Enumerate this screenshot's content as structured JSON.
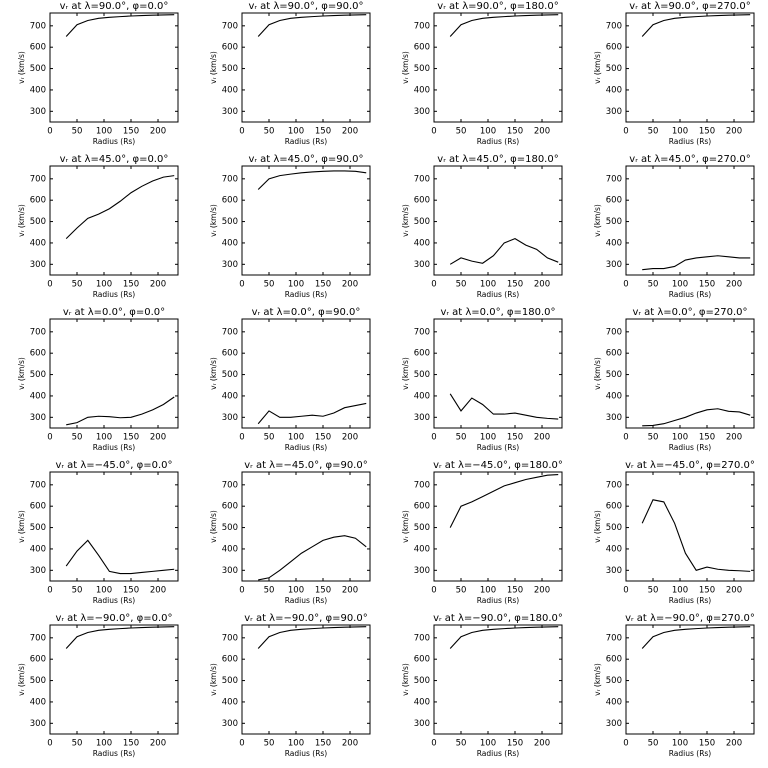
{
  "chart_data": [
    {
      "type": "line",
      "title": "vᵣ at λ=90.0°, φ=0.0°",
      "xlabel": "Radius (Rs)",
      "ylabel": "vᵣ (km/s)",
      "x": [
        30,
        50,
        70,
        90,
        110,
        130,
        150,
        170,
        190,
        210,
        230
      ],
      "series": [
        {
          "color": "#000000",
          "values": [
            650,
            705,
            725,
            735,
            740,
            743,
            746,
            748,
            750,
            751,
            752
          ]
        }
      ],
      "xlim": [
        0,
        237
      ],
      "xticks": [
        0,
        50,
        100,
        150,
        200
      ],
      "ylim": [
        250,
        760
      ],
      "yticks": [
        300,
        400,
        500,
        600,
        700
      ]
    },
    {
      "type": "line",
      "title": "vᵣ at λ=90.0°, φ=90.0°",
      "xlabel": "Radius (Rs)",
      "ylabel": "vᵣ (km/s)",
      "x": [
        30,
        50,
        70,
        90,
        110,
        130,
        150,
        170,
        190,
        210,
        230
      ],
      "series": [
        {
          "color": "#000000",
          "values": [
            650,
            705,
            725,
            735,
            740,
            743,
            746,
            748,
            750,
            751,
            752
          ]
        }
      ],
      "xlim": [
        0,
        237
      ],
      "xticks": [
        0,
        50,
        100,
        150,
        200
      ],
      "ylim": [
        250,
        760
      ],
      "yticks": [
        300,
        400,
        500,
        600,
        700
      ]
    },
    {
      "type": "line",
      "title": "vᵣ at λ=90.0°, φ=180.0°",
      "xlabel": "Radius (Rs)",
      "ylabel": "vᵣ (km/s)",
      "x": [
        30,
        50,
        70,
        90,
        110,
        130,
        150,
        170,
        190,
        210,
        230
      ],
      "series": [
        {
          "color": "#000000",
          "values": [
            650,
            705,
            725,
            735,
            740,
            743,
            746,
            748,
            750,
            751,
            752
          ]
        }
      ],
      "xlim": [
        0,
        237
      ],
      "xticks": [
        0,
        50,
        100,
        150,
        200
      ],
      "ylim": [
        250,
        760
      ],
      "yticks": [
        300,
        400,
        500,
        600,
        700
      ]
    },
    {
      "type": "line",
      "title": "vᵣ at λ=90.0°, φ=270.0°",
      "xlabel": "Radius (Rs)",
      "ylabel": "vᵣ (km/s)",
      "x": [
        30,
        50,
        70,
        90,
        110,
        130,
        150,
        170,
        190,
        210,
        230
      ],
      "series": [
        {
          "color": "#000000",
          "values": [
            650,
            705,
            725,
            735,
            740,
            743,
            746,
            748,
            750,
            751,
            752
          ]
        }
      ],
      "xlim": [
        0,
        237
      ],
      "xticks": [
        0,
        50,
        100,
        150,
        200
      ],
      "ylim": [
        250,
        760
      ],
      "yticks": [
        300,
        400,
        500,
        600,
        700
      ]
    },
    {
      "type": "line",
      "title": "vᵣ at λ=45.0°, φ=0.0°",
      "xlabel": "Radius (Rs)",
      "ylabel": "vᵣ (km/s)",
      "x": [
        30,
        50,
        70,
        90,
        110,
        130,
        150,
        170,
        190,
        210,
        230
      ],
      "series": [
        {
          "color": "#000000",
          "values": [
            420,
            470,
            515,
            535,
            560,
            595,
            635,
            665,
            690,
            708,
            715
          ]
        }
      ],
      "xlim": [
        0,
        237
      ],
      "xticks": [
        0,
        50,
        100,
        150,
        200
      ],
      "ylim": [
        250,
        760
      ],
      "yticks": [
        300,
        400,
        500,
        600,
        700
      ]
    },
    {
      "type": "line",
      "title": "vᵣ at λ=45.0°, φ=90.0°",
      "xlabel": "Radius (Rs)",
      "ylabel": "vᵣ (km/s)",
      "x": [
        30,
        50,
        70,
        90,
        110,
        130,
        150,
        170,
        190,
        210,
        230
      ],
      "series": [
        {
          "color": "#000000",
          "values": [
            650,
            700,
            715,
            722,
            728,
            732,
            735,
            737,
            737,
            735,
            728
          ]
        }
      ],
      "xlim": [
        0,
        237
      ],
      "xticks": [
        0,
        50,
        100,
        150,
        200
      ],
      "ylim": [
        250,
        760
      ],
      "yticks": [
        300,
        400,
        500,
        600,
        700
      ]
    },
    {
      "type": "line",
      "title": "vᵣ at λ=45.0°, φ=180.0°",
      "xlabel": "Radius (Rs)",
      "ylabel": "vᵣ (km/s)",
      "x": [
        30,
        50,
        70,
        90,
        110,
        130,
        150,
        170,
        190,
        210,
        230
      ],
      "series": [
        {
          "color": "#000000",
          "values": [
            300,
            330,
            315,
            305,
            340,
            400,
            420,
            390,
            370,
            330,
            310
          ]
        }
      ],
      "xlim": [
        0,
        237
      ],
      "xticks": [
        0,
        50,
        100,
        150,
        200
      ],
      "ylim": [
        250,
        760
      ],
      "yticks": [
        300,
        400,
        500,
        600,
        700
      ]
    },
    {
      "type": "line",
      "title": "vᵣ at λ=45.0°, φ=270.0°",
      "xlabel": "Radius (Rs)",
      "ylabel": "vᵣ (km/s)",
      "x": [
        30,
        50,
        70,
        90,
        110,
        130,
        150,
        170,
        190,
        210,
        230
      ],
      "series": [
        {
          "color": "#000000",
          "values": [
            275,
            280,
            280,
            290,
            320,
            330,
            335,
            340,
            335,
            330,
            330
          ]
        }
      ],
      "xlim": [
        0,
        237
      ],
      "xticks": [
        0,
        50,
        100,
        150,
        200
      ],
      "ylim": [
        250,
        760
      ],
      "yticks": [
        300,
        400,
        500,
        600,
        700
      ]
    },
    {
      "type": "line",
      "title": "vᵣ at λ=0.0°, φ=0.0°",
      "xlabel": "Radius (Rs)",
      "ylabel": "vᵣ (km/s)",
      "x": [
        30,
        50,
        70,
        90,
        110,
        130,
        150,
        170,
        190,
        210,
        230
      ],
      "series": [
        {
          "color": "#000000",
          "values": [
            265,
            275,
            300,
            305,
            303,
            298,
            300,
            315,
            335,
            360,
            395
          ]
        }
      ],
      "xlim": [
        0,
        237
      ],
      "xticks": [
        0,
        50,
        100,
        150,
        200
      ],
      "ylim": [
        250,
        760
      ],
      "yticks": [
        300,
        400,
        500,
        600,
        700
      ]
    },
    {
      "type": "line",
      "title": "vᵣ at λ=0.0°, φ=90.0°",
      "xlabel": "Radius (Rs)",
      "ylabel": "vᵣ (km/s)",
      "x": [
        30,
        50,
        70,
        90,
        110,
        130,
        150,
        170,
        190,
        210,
        230
      ],
      "series": [
        {
          "color": "#000000",
          "values": [
            270,
            330,
            300,
            300,
            305,
            310,
            305,
            320,
            345,
            355,
            365
          ]
        }
      ],
      "xlim": [
        0,
        237
      ],
      "xticks": [
        0,
        50,
        100,
        150,
        200
      ],
      "ylim": [
        250,
        760
      ],
      "yticks": [
        300,
        400,
        500,
        600,
        700
      ]
    },
    {
      "type": "line",
      "title": "vᵣ at λ=0.0°, φ=180.0°",
      "xlabel": "Radius (Rs)",
      "ylabel": "vᵣ (km/s)",
      "x": [
        30,
        50,
        70,
        90,
        110,
        130,
        150,
        170,
        190,
        210,
        230
      ],
      "series": [
        {
          "color": "#000000",
          "values": [
            410,
            330,
            390,
            360,
            315,
            315,
            320,
            310,
            300,
            295,
            292
          ]
        }
      ],
      "xlim": [
        0,
        237
      ],
      "xticks": [
        0,
        50,
        100,
        150,
        200
      ],
      "ylim": [
        250,
        760
      ],
      "yticks": [
        300,
        400,
        500,
        600,
        700
      ]
    },
    {
      "type": "line",
      "title": "vᵣ at λ=0.0°, φ=270.0°",
      "xlabel": "Radius (Rs)",
      "ylabel": "vᵣ (km/s)",
      "x": [
        30,
        50,
        70,
        90,
        110,
        130,
        150,
        170,
        190,
        210,
        230
      ],
      "series": [
        {
          "color": "#000000",
          "values": [
            260,
            262,
            270,
            285,
            300,
            320,
            335,
            340,
            328,
            325,
            310
          ]
        }
      ],
      "xlim": [
        0,
        237
      ],
      "xticks": [
        0,
        50,
        100,
        150,
        200
      ],
      "ylim": [
        250,
        760
      ],
      "yticks": [
        300,
        400,
        500,
        600,
        700
      ]
    },
    {
      "type": "line",
      "title": "vᵣ at λ=−45.0°, φ=0.0°",
      "xlabel": "Radius (Rs)",
      "ylabel": "vᵣ (km/s)",
      "x": [
        30,
        50,
        70,
        90,
        110,
        130,
        150,
        170,
        190,
        210,
        230
      ],
      "series": [
        {
          "color": "#000000",
          "values": [
            320,
            390,
            440,
            370,
            295,
            285,
            285,
            290,
            295,
            300,
            305
          ]
        }
      ],
      "xlim": [
        0,
        237
      ],
      "xticks": [
        0,
        50,
        100,
        150,
        200
      ],
      "ylim": [
        250,
        760
      ],
      "yticks": [
        300,
        400,
        500,
        600,
        700
      ]
    },
    {
      "type": "line",
      "title": "vᵣ at λ=−45.0°, φ=90.0°",
      "xlabel": "Radius (Rs)",
      "ylabel": "vᵣ (km/s)",
      "x": [
        30,
        50,
        70,
        90,
        110,
        130,
        150,
        170,
        190,
        210,
        230
      ],
      "series": [
        {
          "color": "#000000",
          "values": [
            255,
            265,
            300,
            340,
            380,
            410,
            440,
            455,
            462,
            450,
            410
          ]
        }
      ],
      "xlim": [
        0,
        237
      ],
      "xticks": [
        0,
        50,
        100,
        150,
        200
      ],
      "ylim": [
        250,
        760
      ],
      "yticks": [
        300,
        400,
        500,
        600,
        700
      ]
    },
    {
      "type": "line",
      "title": "vᵣ at λ=−45.0°, φ=180.0°",
      "xlabel": "Radius (Rs)",
      "ylabel": "vᵣ (km/s)",
      "x": [
        30,
        50,
        70,
        90,
        110,
        130,
        150,
        170,
        190,
        210,
        230
      ],
      "series": [
        {
          "color": "#000000",
          "values": [
            500,
            600,
            620,
            645,
            670,
            695,
            710,
            725,
            735,
            745,
            748
          ]
        }
      ],
      "xlim": [
        0,
        237
      ],
      "xticks": [
        0,
        50,
        100,
        150,
        200
      ],
      "ylim": [
        250,
        760
      ],
      "yticks": [
        300,
        400,
        500,
        600,
        700
      ]
    },
    {
      "type": "line",
      "title": "vᵣ at λ=−45.0°, φ=270.0°",
      "xlabel": "Radius (Rs)",
      "ylabel": "vᵣ (km/s)",
      "x": [
        30,
        50,
        70,
        90,
        110,
        130,
        150,
        170,
        190,
        210,
        230
      ],
      "series": [
        {
          "color": "#000000",
          "values": [
            520,
            630,
            620,
            520,
            380,
            300,
            315,
            305,
            300,
            298,
            295
          ]
        }
      ],
      "xlim": [
        0,
        237
      ],
      "xticks": [
        0,
        50,
        100,
        150,
        200
      ],
      "ylim": [
        250,
        760
      ],
      "yticks": [
        300,
        400,
        500,
        600,
        700
      ]
    },
    {
      "type": "line",
      "title": "vᵣ at λ=−90.0°, φ=0.0°",
      "xlabel": "Radius (Rs)",
      "ylabel": "vᵣ (km/s)",
      "x": [
        30,
        50,
        70,
        90,
        110,
        130,
        150,
        170,
        190,
        210,
        230
      ],
      "series": [
        {
          "color": "#000000",
          "values": [
            650,
            705,
            725,
            735,
            740,
            743,
            746,
            748,
            750,
            751,
            752
          ]
        }
      ],
      "xlim": [
        0,
        237
      ],
      "xticks": [
        0,
        50,
        100,
        150,
        200
      ],
      "ylim": [
        250,
        760
      ],
      "yticks": [
        300,
        400,
        500,
        600,
        700
      ]
    },
    {
      "type": "line",
      "title": "vᵣ at λ=−90.0°, φ=90.0°",
      "xlabel": "Radius (Rs)",
      "ylabel": "vᵣ (km/s)",
      "x": [
        30,
        50,
        70,
        90,
        110,
        130,
        150,
        170,
        190,
        210,
        230
      ],
      "series": [
        {
          "color": "#000000",
          "values": [
            650,
            705,
            725,
            735,
            740,
            743,
            746,
            748,
            750,
            751,
            752
          ]
        }
      ],
      "xlim": [
        0,
        237
      ],
      "xticks": [
        0,
        50,
        100,
        150,
        200
      ],
      "ylim": [
        250,
        760
      ],
      "yticks": [
        300,
        400,
        500,
        600,
        700
      ]
    },
    {
      "type": "line",
      "title": "vᵣ at λ=−90.0°, φ=180.0°",
      "xlabel": "Radius (Rs)",
      "ylabel": "vᵣ (km/s)",
      "x": [
        30,
        50,
        70,
        90,
        110,
        130,
        150,
        170,
        190,
        210,
        230
      ],
      "series": [
        {
          "color": "#000000",
          "values": [
            650,
            705,
            725,
            735,
            740,
            743,
            746,
            748,
            750,
            751,
            752
          ]
        }
      ],
      "xlim": [
        0,
        237
      ],
      "xticks": [
        0,
        50,
        100,
        150,
        200
      ],
      "ylim": [
        250,
        760
      ],
      "yticks": [
        300,
        400,
        500,
        600,
        700
      ]
    },
    {
      "type": "line",
      "title": "vᵣ at λ=−90.0°, φ=270.0°",
      "xlabel": "Radius (Rs)",
      "ylabel": "vᵣ (km/s)",
      "x": [
        30,
        50,
        70,
        90,
        110,
        130,
        150,
        170,
        190,
        210,
        230
      ],
      "series": [
        {
          "color": "#000000",
          "values": [
            650,
            705,
            725,
            735,
            740,
            743,
            746,
            748,
            750,
            751,
            752
          ]
        }
      ],
      "xlim": [
        0,
        237
      ],
      "xticks": [
        0,
        50,
        100,
        150,
        200
      ],
      "ylim": [
        250,
        760
      ],
      "yticks": [
        300,
        400,
        500,
        600,
        700
      ]
    }
  ]
}
